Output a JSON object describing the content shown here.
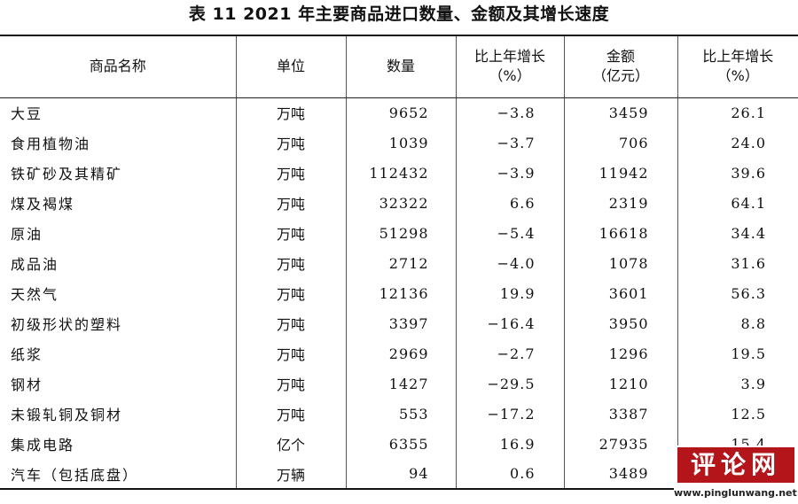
{
  "title": "表 11    2021 年主要商品进口数量、金额及其增长速度",
  "headers": {
    "name": "商品名称",
    "unit": "单位",
    "quantity": "数量",
    "quantity_growth_line1": "比上年增长",
    "quantity_growth_line2": "（%）",
    "amount_line1": "金额",
    "amount_line2": "（亿元）",
    "amount_growth_line1": "比上年增长",
    "amount_growth_line2": "（%）"
  },
  "rows": [
    {
      "name": "大豆",
      "unit": "万吨",
      "quantity": "9652",
      "quantity_growth": "−3.8",
      "amount": "3459",
      "amount_growth": "26.1"
    },
    {
      "name": "食用植物油",
      "unit": "万吨",
      "quantity": "1039",
      "quantity_growth": "−3.7",
      "amount": "706",
      "amount_growth": "24.0"
    },
    {
      "name": "铁矿砂及其精矿",
      "unit": "万吨",
      "quantity": "112432",
      "quantity_growth": "−3.9",
      "amount": "11942",
      "amount_growth": "39.6"
    },
    {
      "name": "煤及褐煤",
      "unit": "万吨",
      "quantity": "32322",
      "quantity_growth": "6.6",
      "amount": "2319",
      "amount_growth": "64.1"
    },
    {
      "name": "原油",
      "unit": "万吨",
      "quantity": "51298",
      "quantity_growth": "−5.4",
      "amount": "16618",
      "amount_growth": "34.4"
    },
    {
      "name": "成品油",
      "unit": "万吨",
      "quantity": "2712",
      "quantity_growth": "−4.0",
      "amount": "1078",
      "amount_growth": "31.6"
    },
    {
      "name": "天然气",
      "unit": "万吨",
      "quantity": "12136",
      "quantity_growth": "19.9",
      "amount": "3601",
      "amount_growth": "56.3"
    },
    {
      "name": "初级形状的塑料",
      "unit": "万吨",
      "quantity": "3397",
      "quantity_growth": "−16.4",
      "amount": "3950",
      "amount_growth": "8.8"
    },
    {
      "name": "纸浆",
      "unit": "万吨",
      "quantity": "2969",
      "quantity_growth": "−2.7",
      "amount": "1296",
      "amount_growth": "19.5"
    },
    {
      "name": "钢材",
      "unit": "万吨",
      "quantity": "1427",
      "quantity_growth": "−29.5",
      "amount": "1210",
      "amount_growth": "3.9"
    },
    {
      "name": "未锻轧铜及铜材",
      "unit": "万吨",
      "quantity": "553",
      "quantity_growth": "−17.2",
      "amount": "3387",
      "amount_growth": "12.5"
    },
    {
      "name": "集成电路",
      "unit": "亿个",
      "quantity": "6355",
      "quantity_growth": "16.9",
      "amount": "27935",
      "amount_growth": "15.4"
    },
    {
      "name": "汽车（包括底盘）",
      "unit": "万辆",
      "quantity": "94",
      "quantity_growth": "0.6",
      "amount": "3489",
      "amount_growth": ""
    }
  ],
  "watermark": {
    "logo_text": "评论网",
    "url": "www.pinglunwang.net",
    "bg_color": "#b3151b"
  }
}
